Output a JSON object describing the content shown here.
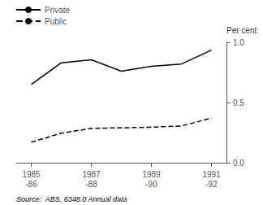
{
  "chart_data": {
    "type": "line",
    "categories": [
      "1985\n-86",
      null,
      "1987\n-88",
      null,
      "1989\n-90",
      null,
      "1991\n-92"
    ],
    "series": [
      {
        "name": "Private",
        "color": "#000000",
        "line_style": "solid",
        "values": [
          0.65,
          0.83,
          0.855,
          0.76,
          0.8,
          0.82,
          0.935
        ]
      },
      {
        "name": "Public",
        "color": "#000000",
        "line_style": "dashed",
        "values": [
          0.17,
          0.245,
          0.285,
          0.29,
          0.295,
          0.305,
          0.37
        ]
      }
    ],
    "y_label": "Per cent",
    "ylim": [
      0.0,
      1.0
    ],
    "yticks": [
      {
        "value": 0,
        "label": "0.0"
      },
      {
        "value": 0.5,
        "label": "0.5"
      },
      {
        "value": 1,
        "label": "1.0"
      }
    ],
    "annotations": [
      "Source:  ABS, 6348.0 Annual data"
    ],
    "grid": false,
    "legend": "upper left"
  }
}
